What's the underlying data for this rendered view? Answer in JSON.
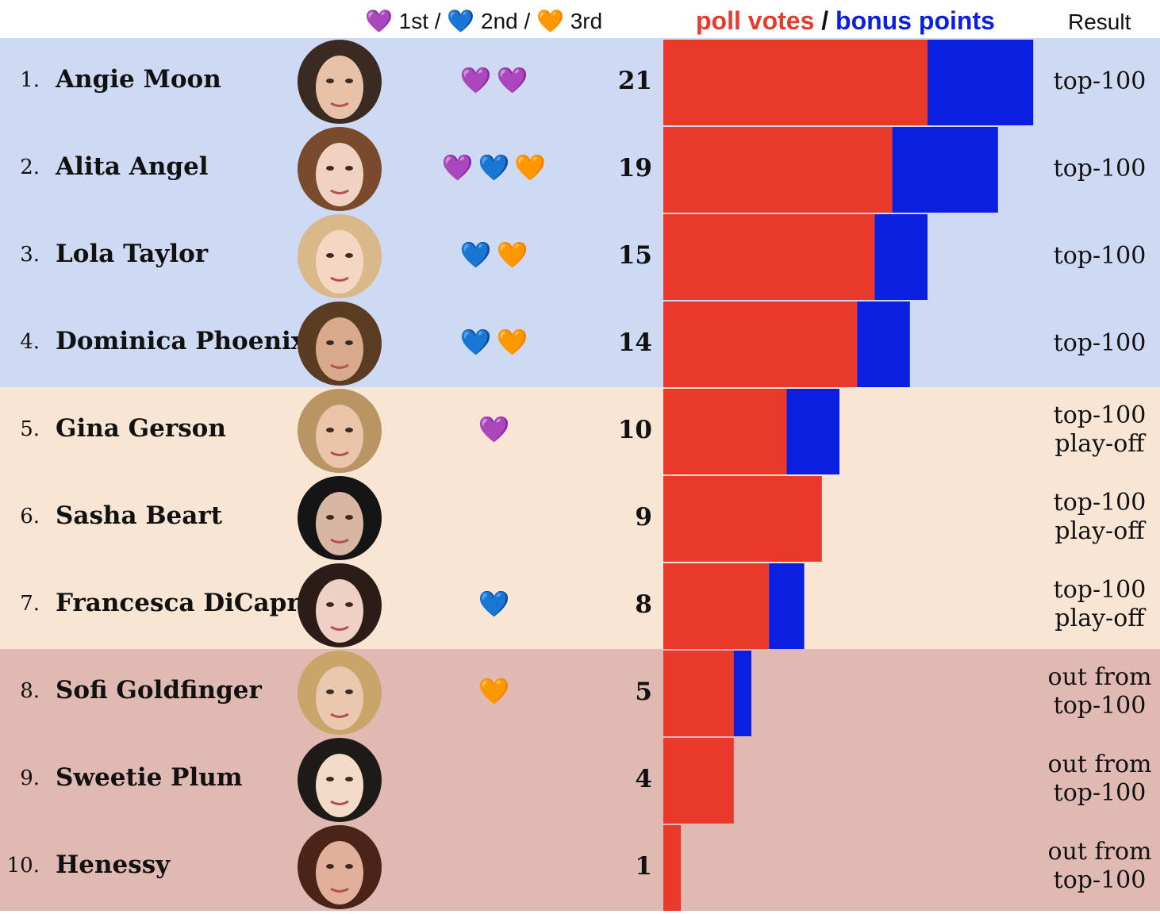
{
  "header": {
    "medals_legend": {
      "first_icon": "purple-heart-icon",
      "first_label": "1st",
      "second_icon": "blue-heart-icon",
      "second_label": "2nd",
      "third_icon": "orange-heart-icon",
      "third_label": "3rd",
      "separator": "/"
    },
    "chart_title_red": "poll votes",
    "chart_title_sep": "/",
    "chart_title_blue": "bonus points",
    "result_label": "Result"
  },
  "colors": {
    "poll_votes": "#e8392a",
    "bonus_points": "#0a1fe0",
    "zone_top": "#ced9f3",
    "zone_playoff": "#f8e5d3",
    "zone_out": "#e0bab2",
    "first": "#9b4ddb",
    "second": "#2f6fe8",
    "third": "#f08a24"
  },
  "medal_glyphs": {
    "first": "💜",
    "second": "💙",
    "third": "🧡"
  },
  "chart_data": {
    "type": "bar",
    "orientation": "horizontal",
    "stacked": true,
    "categories": [
      "Angie Moon",
      "Alita Angel",
      "Lola Taylor",
      "Dominica Phoenix",
      "Gina Gerson",
      "Sasha Beart",
      "Francesca DiCaprio",
      "Sofi Goldfinger",
      "Sweetie Plum",
      "Henessy"
    ],
    "series": [
      {
        "name": "poll votes",
        "values": [
          15,
          13,
          12,
          11,
          7,
          9,
          6,
          4,
          4,
          1
        ]
      },
      {
        "name": "bonus points",
        "values": [
          6,
          6,
          3,
          3,
          3,
          0,
          2,
          1,
          0,
          0
        ]
      }
    ],
    "xlim": [
      0,
      21
    ]
  },
  "rows": [
    {
      "rank": "1.",
      "name": "Angie Moon",
      "medals": [
        "first",
        "first"
      ],
      "score": "21",
      "result": [
        "top-100"
      ],
      "zone": "top"
    },
    {
      "rank": "2.",
      "name": "Alita Angel",
      "medals": [
        "first",
        "second",
        "third"
      ],
      "score": "19",
      "result": [
        "top-100"
      ],
      "zone": "top"
    },
    {
      "rank": "3.",
      "name": "Lola Taylor",
      "medals": [
        "second",
        "third"
      ],
      "score": "15",
      "result": [
        "top-100"
      ],
      "zone": "top"
    },
    {
      "rank": "4.",
      "name": "Dominica Phoenix",
      "medals": [
        "second",
        "third"
      ],
      "score": "14",
      "result": [
        "top-100"
      ],
      "zone": "top"
    },
    {
      "rank": "5.",
      "name": "Gina Gerson",
      "medals": [
        "first"
      ],
      "score": "10",
      "result": [
        "top-100",
        "play-off"
      ],
      "zone": "playoff"
    },
    {
      "rank": "6.",
      "name": "Sasha Beart",
      "medals": [],
      "score": "9",
      "result": [
        "top-100",
        "play-off"
      ],
      "zone": "playoff"
    },
    {
      "rank": "7.",
      "name": "Francesca DiCaprio",
      "medals": [
        "second"
      ],
      "score": "8",
      "result": [
        "top-100",
        "play-off"
      ],
      "zone": "playoff"
    },
    {
      "rank": "8.",
      "name": "Sofi Goldfinger",
      "medals": [
        "third"
      ],
      "score": "5",
      "result": [
        "out from",
        "top-100"
      ],
      "zone": "out"
    },
    {
      "rank": "9.",
      "name": "Sweetie Plum",
      "medals": [],
      "score": "4",
      "result": [
        "out from",
        "top-100"
      ],
      "zone": "out"
    },
    {
      "rank": "10.",
      "name": "Henessy",
      "medals": [],
      "score": "1",
      "result": [
        "out from",
        "top-100"
      ],
      "zone": "out"
    }
  ]
}
